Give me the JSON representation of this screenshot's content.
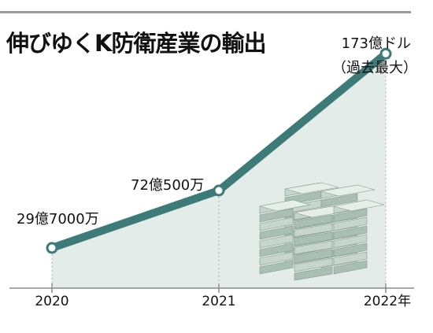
{
  "chart_data": {
    "type": "line",
    "title": "伸びゆくK防衛産業の輸出",
    "x": [
      "2020",
      "2021",
      "2022"
    ],
    "tick_labels": [
      "2020",
      "2021",
      "2022年"
    ],
    "series": [
      {
        "values": [
          29.7,
          72.05,
          173
        ]
      }
    ],
    "data_labels": [
      "29億7000万",
      "72億500万",
      "173億ドル"
    ],
    "annotation": "（過去最大）",
    "ylim": [
      0,
      190
    ],
    "grid": false,
    "colors": {
      "line": "#3d7b78",
      "area": "#e3ece8",
      "point_fill": "#ffffff"
    },
    "illustration": "money-stack"
  }
}
